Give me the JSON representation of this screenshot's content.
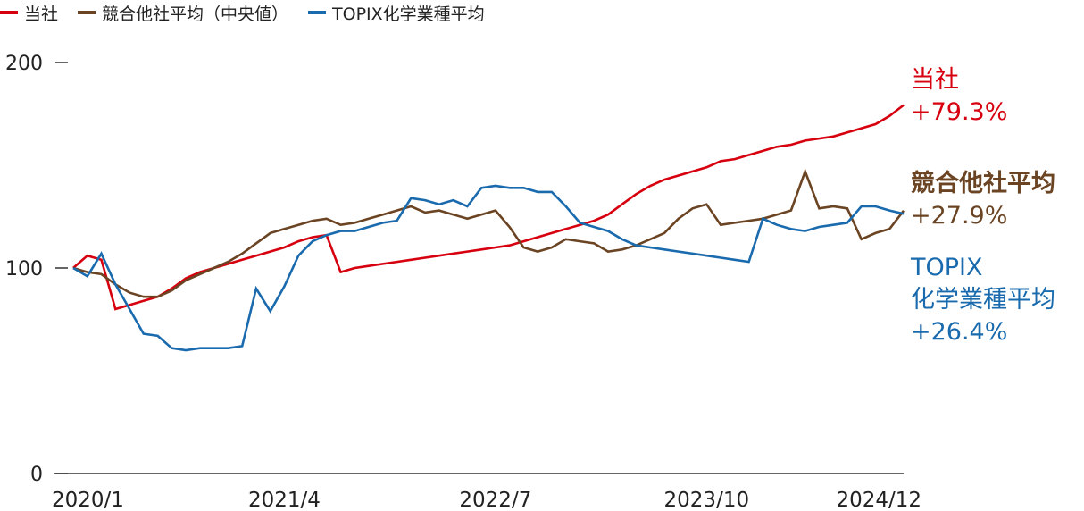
{
  "legend": [
    {
      "label": "当社",
      "color": "#d7000f"
    },
    {
      "label": "競合他社平均（中央値）",
      "color": "#6b4423"
    },
    {
      "label": "TOPIX化学業種平均",
      "color": "#1a6aae"
    }
  ],
  "end_labels": {
    "company": {
      "name": "当社",
      "value": "+79.3%",
      "color": "#d7000f"
    },
    "competitors": {
      "name": "競合他社平均",
      "value": "+27.9%",
      "color": "#6b4423"
    },
    "topix": {
      "name_line1": "TOPIX",
      "name_line2": "化学業種平均",
      "value": "+26.4%",
      "color": "#1a6aae"
    }
  },
  "chart_data": {
    "type": "line",
    "xlabel": "",
    "ylabel": "",
    "x_ticks": [
      "2020/1",
      "2021/4",
      "2022/7",
      "2023/10",
      "2024/12"
    ],
    "y_ticks": [
      0,
      100,
      200
    ],
    "ylim": [
      0,
      200
    ],
    "grid": false,
    "legend_position": "top-left",
    "series": [
      {
        "name": "当社",
        "color": "#d7000f",
        "points": [
          [
            "2020/1",
            100
          ],
          [
            "2020/2",
            106
          ],
          [
            "2020/3",
            104
          ],
          [
            "2020/4",
            80
          ],
          [
            "2020/5",
            82
          ],
          [
            "2020/6",
            84
          ],
          [
            "2020/7",
            86
          ],
          [
            "2020/8",
            90
          ],
          [
            "2020/9",
            95
          ],
          [
            "2020/10",
            98
          ],
          [
            "2020/11",
            100
          ],
          [
            "2020/12",
            102
          ],
          [
            "2021/1",
            104
          ],
          [
            "2021/2",
            106
          ],
          [
            "2021/3",
            108
          ],
          [
            "2021/4",
            110
          ],
          [
            "2021/5",
            113
          ],
          [
            "2021/6",
            115
          ],
          [
            "2021/7",
            116
          ],
          [
            "2021/8",
            98
          ],
          [
            "2021/9",
            100
          ],
          [
            "2021/10",
            101
          ],
          [
            "2021/11",
            102
          ],
          [
            "2021/12",
            103
          ],
          [
            "2022/1",
            104
          ],
          [
            "2022/2",
            105
          ],
          [
            "2022/3",
            106
          ],
          [
            "2022/4",
            107
          ],
          [
            "2022/5",
            108
          ],
          [
            "2022/6",
            109
          ],
          [
            "2022/7",
            110
          ],
          [
            "2022/8",
            111
          ],
          [
            "2022/9",
            113
          ],
          [
            "2022/10",
            115
          ],
          [
            "2022/11",
            117
          ],
          [
            "2022/12",
            119
          ],
          [
            "2023/1",
            121
          ],
          [
            "2023/2",
            123
          ],
          [
            "2023/3",
            126
          ],
          [
            "2023/4",
            131
          ],
          [
            "2023/5",
            136
          ],
          [
            "2023/6",
            140
          ],
          [
            "2023/7",
            143
          ],
          [
            "2023/8",
            145
          ],
          [
            "2023/9",
            147
          ],
          [
            "2023/10",
            149
          ],
          [
            "2023/11",
            152
          ],
          [
            "2023/12",
            153
          ],
          [
            "2024/1",
            155
          ],
          [
            "2024/2",
            157
          ],
          [
            "2024/3",
            159
          ],
          [
            "2024/4",
            160
          ],
          [
            "2024/5",
            162
          ],
          [
            "2024/6",
            163
          ],
          [
            "2024/7",
            164
          ],
          [
            "2024/8",
            166
          ],
          [
            "2024/9",
            168
          ],
          [
            "2024/10",
            170
          ],
          [
            "2024/11",
            174
          ],
          [
            "2024/12",
            179.3
          ]
        ]
      },
      {
        "name": "競合他社平均（中央値）",
        "color": "#6b4423",
        "points": [
          [
            "2020/1",
            100
          ],
          [
            "2020/2",
            98
          ],
          [
            "2020/3",
            97
          ],
          [
            "2020/4",
            92
          ],
          [
            "2020/5",
            88
          ],
          [
            "2020/6",
            86
          ],
          [
            "2020/7",
            86
          ],
          [
            "2020/8",
            89
          ],
          [
            "2020/9",
            94
          ],
          [
            "2020/10",
            97
          ],
          [
            "2020/11",
            100
          ],
          [
            "2020/12",
            103
          ],
          [
            "2021/1",
            107
          ],
          [
            "2021/2",
            112
          ],
          [
            "2021/3",
            117
          ],
          [
            "2021/4",
            119
          ],
          [
            "2021/5",
            121
          ],
          [
            "2021/6",
            123
          ],
          [
            "2021/7",
            124
          ],
          [
            "2021/8",
            121
          ],
          [
            "2021/9",
            122
          ],
          [
            "2021/10",
            124
          ],
          [
            "2021/11",
            126
          ],
          [
            "2021/12",
            128
          ],
          [
            "2022/1",
            130
          ],
          [
            "2022/2",
            127
          ],
          [
            "2022/3",
            128
          ],
          [
            "2022/4",
            126
          ],
          [
            "2022/5",
            124
          ],
          [
            "2022/6",
            126
          ],
          [
            "2022/7",
            128
          ],
          [
            "2022/8",
            120
          ],
          [
            "2022/9",
            110
          ],
          [
            "2022/10",
            108
          ],
          [
            "2022/11",
            110
          ],
          [
            "2022/12",
            114
          ],
          [
            "2023/1",
            113
          ],
          [
            "2023/2",
            112
          ],
          [
            "2023/3",
            108
          ],
          [
            "2023/4",
            109
          ],
          [
            "2023/5",
            111
          ],
          [
            "2023/6",
            114
          ],
          [
            "2023/7",
            117
          ],
          [
            "2023/8",
            124
          ],
          [
            "2023/9",
            129
          ],
          [
            "2023/10",
            131
          ],
          [
            "2023/11",
            121
          ],
          [
            "2023/12",
            122
          ],
          [
            "2024/1",
            123
          ],
          [
            "2024/2",
            124
          ],
          [
            "2024/3",
            126
          ],
          [
            "2024/4",
            128
          ],
          [
            "2024/5",
            147
          ],
          [
            "2024/6",
            129
          ],
          [
            "2024/7",
            130
          ],
          [
            "2024/8",
            129
          ],
          [
            "2024/9",
            114
          ],
          [
            "2024/10",
            117
          ],
          [
            "2024/11",
            119
          ],
          [
            "2024/12",
            127.9
          ]
        ]
      },
      {
        "name": "TOPIX化学業種平均",
        "color": "#1a6aae",
        "points": [
          [
            "2020/1",
            100
          ],
          [
            "2020/2",
            96
          ],
          [
            "2020/3",
            107
          ],
          [
            "2020/4",
            92
          ],
          [
            "2020/5",
            80
          ],
          [
            "2020/6",
            68
          ],
          [
            "2020/7",
            67
          ],
          [
            "2020/8",
            61
          ],
          [
            "2020/9",
            60
          ],
          [
            "2020/10",
            61
          ],
          [
            "2020/11",
            61
          ],
          [
            "2020/12",
            61
          ],
          [
            "2021/1",
            62
          ],
          [
            "2021/2",
            90
          ],
          [
            "2021/3",
            79
          ],
          [
            "2021/4",
            91
          ],
          [
            "2021/5",
            106
          ],
          [
            "2021/6",
            113
          ],
          [
            "2021/7",
            116
          ],
          [
            "2021/8",
            118
          ],
          [
            "2021/9",
            118
          ],
          [
            "2021/10",
            120
          ],
          [
            "2021/11",
            122
          ],
          [
            "2021/12",
            123
          ],
          [
            "2022/1",
            134
          ],
          [
            "2022/2",
            133
          ],
          [
            "2022/3",
            131
          ],
          [
            "2022/4",
            133
          ],
          [
            "2022/5",
            130
          ],
          [
            "2022/6",
            139
          ],
          [
            "2022/7",
            140
          ],
          [
            "2022/8",
            139
          ],
          [
            "2022/9",
            139
          ],
          [
            "2022/10",
            137
          ],
          [
            "2022/11",
            137
          ],
          [
            "2022/12",
            130
          ],
          [
            "2023/1",
            122
          ],
          [
            "2023/2",
            120
          ],
          [
            "2023/3",
            118
          ],
          [
            "2023/4",
            114
          ],
          [
            "2023/5",
            111
          ],
          [
            "2023/6",
            110
          ],
          [
            "2023/7",
            109
          ],
          [
            "2023/8",
            108
          ],
          [
            "2023/9",
            107
          ],
          [
            "2023/10",
            106
          ],
          [
            "2023/11",
            105
          ],
          [
            "2023/12",
            104
          ],
          [
            "2024/1",
            103
          ],
          [
            "2024/2",
            124
          ],
          [
            "2024/3",
            121
          ],
          [
            "2024/4",
            119
          ],
          [
            "2024/5",
            118
          ],
          [
            "2024/6",
            120
          ],
          [
            "2024/7",
            121
          ],
          [
            "2024/8",
            122
          ],
          [
            "2024/9",
            130
          ],
          [
            "2024/10",
            130
          ],
          [
            "2024/11",
            128
          ],
          [
            "2024/12",
            126.4
          ]
        ]
      }
    ]
  }
}
